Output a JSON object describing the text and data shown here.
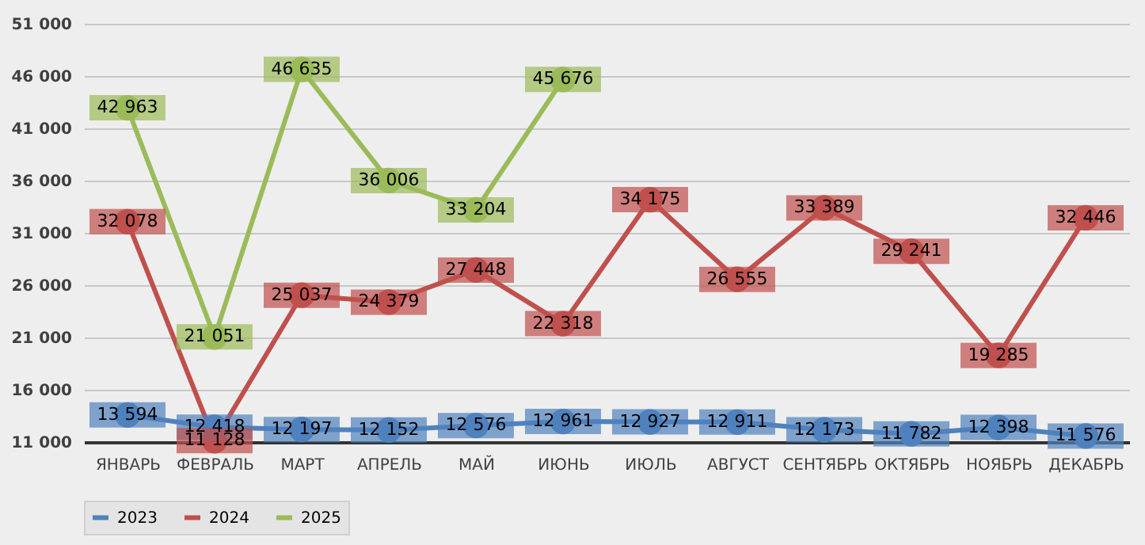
{
  "chart_data": {
    "type": "line",
    "categories": [
      "ЯНВАРЬ",
      "ФЕВРАЛЬ",
      "МАРТ",
      "АПРЕЛЬ",
      "МАЙ",
      "ИЮНЬ",
      "ИЮЛЬ",
      "АВГУСТ",
      "СЕНТЯБРЬ",
      "ОКТЯБРЬ",
      "НОЯБРЬ",
      "ДЕКАБРЬ"
    ],
    "series": [
      {
        "name": "2023",
        "color": "#4f81bd",
        "values": [
          13594,
          12418,
          12197,
          12152,
          12576,
          12961,
          12927,
          12911,
          12173,
          11782,
          12398,
          11576
        ],
        "value_labels": [
          "13 594",
          "12 418",
          "12 197",
          "12 152",
          "12 576",
          "12 961",
          "12 927",
          "12 911",
          "12 173",
          "11 782",
          "12 398",
          "11 576"
        ]
      },
      {
        "name": "2024",
        "color": "#c0504d",
        "values": [
          32078,
          11128,
          25037,
          24379,
          27448,
          22318,
          34175,
          26555,
          33389,
          29241,
          19285,
          32446
        ],
        "value_labels": [
          "32 078",
          "11 128",
          "25 037",
          "24 379",
          "27 448",
          "22 318",
          "34 175",
          "26 555",
          "33 389",
          "29 241",
          "19 285",
          "32 446"
        ]
      },
      {
        "name": "2025",
        "color": "#9bbb59",
        "values": [
          42963,
          21051,
          46635,
          36006,
          33204,
          45676,
          null,
          null,
          null,
          null,
          null,
          null
        ],
        "value_labels": [
          "42 963",
          "21 051",
          "46 635",
          "36 006",
          "33 204",
          "45 676",
          null,
          null,
          null,
          null,
          null,
          null
        ]
      }
    ],
    "ylim": [
      11000,
      51000
    ],
    "yticks": [
      {
        "value": 11000,
        "label": "11 000"
      },
      {
        "value": 16000,
        "label": "16 000"
      },
      {
        "value": 21000,
        "label": "21 000"
      },
      {
        "value": 26000,
        "label": "26 000"
      },
      {
        "value": 31000,
        "label": "31 000"
      },
      {
        "value": 36000,
        "label": "36 000"
      },
      {
        "value": 41000,
        "label": "41 000"
      },
      {
        "value": 46000,
        "label": "46 000"
      },
      {
        "value": 51000,
        "label": "51 000"
      }
    ],
    "grid": "y",
    "legend": "bottom",
    "marker": "circle",
    "line_style": "solid"
  }
}
